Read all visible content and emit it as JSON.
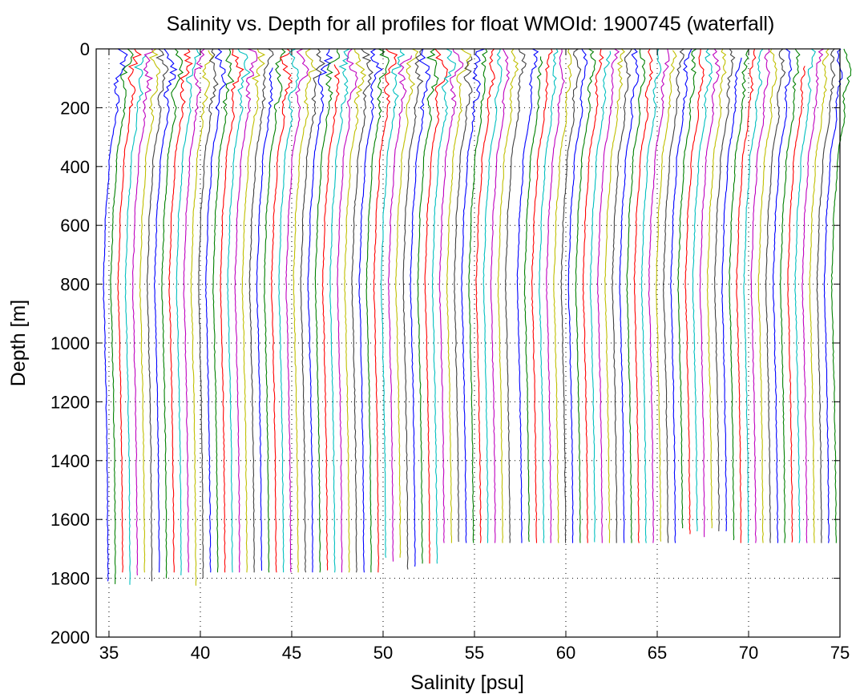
{
  "chart_data": {
    "type": "line",
    "title": "Salinity vs. Depth for all profiles for float WMOId: 1900745 (waterfall)",
    "xlabel": "Salinity [psu]",
    "ylabel": "Depth [m]",
    "xlim": [
      34.3,
      75
    ],
    "ylim": [
      0,
      2000
    ],
    "y_reversed": true,
    "grid": true,
    "grid_style": "dotted",
    "xticks": [
      35,
      40,
      45,
      50,
      55,
      60,
      65,
      70,
      75
    ],
    "yticks": [
      0,
      200,
      400,
      600,
      800,
      1000,
      1200,
      1400,
      1600,
      1800,
      2000
    ],
    "xtick_labels": [
      "35",
      "40",
      "45",
      "50",
      "55",
      "60",
      "65",
      "70",
      "75"
    ],
    "ytick_labels": [
      "0",
      "200",
      "400",
      "600",
      "800",
      "1000",
      "1200",
      "1400",
      "1600",
      "1800",
      "2000"
    ],
    "waterfall_offset_psu": 0.4,
    "series_count": 100,
    "base_salinity_profile": [
      {
        "depth": 0,
        "sal": 35.6
      },
      {
        "depth": 50,
        "sal": 35.6
      },
      {
        "depth": 200,
        "sal": 35.4
      },
      {
        "depth": 400,
        "sal": 35.0
      },
      {
        "depth": 600,
        "sal": 34.8
      },
      {
        "depth": 800,
        "sal": 34.7
      },
      {
        "depth": 1000,
        "sal": 34.78
      },
      {
        "depth": 1200,
        "sal": 34.85
      },
      {
        "depth": 1400,
        "sal": 34.9
      },
      {
        "depth": 1600,
        "sal": 34.93
      },
      {
        "depth": 1800,
        "sal": 34.95
      }
    ],
    "series_colors": [
      "#0000ff",
      "#008000",
      "#ff0000",
      "#00bfbf",
      "#bf00bf",
      "#bfbf00",
      "#404040"
    ]
  }
}
